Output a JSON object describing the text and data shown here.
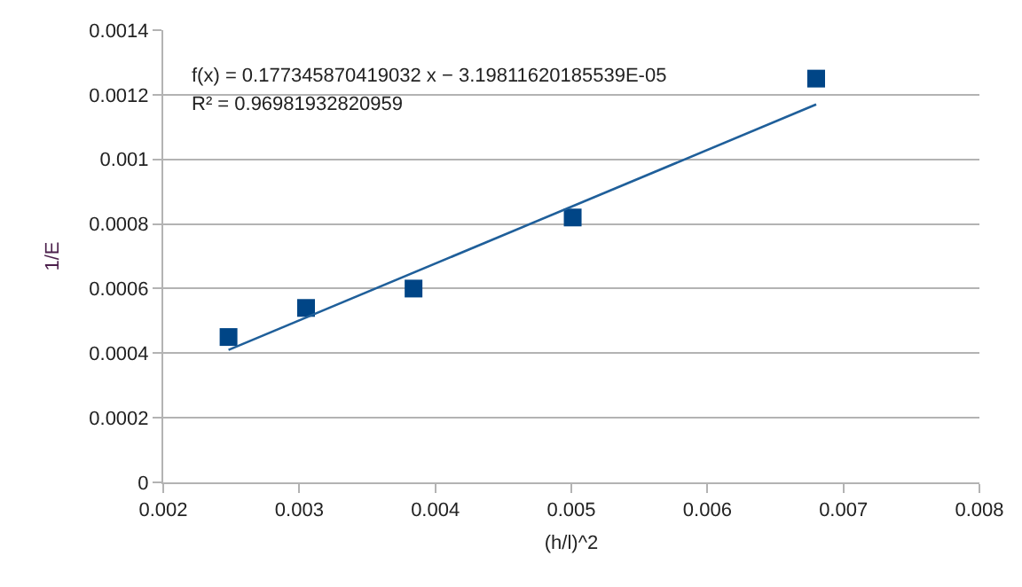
{
  "chart_data": {
    "type": "scatter",
    "xlabel": "(h/l)^2",
    "ylabel": "1/E",
    "series": [
      {
        "color": "#004586",
        "marker": "square",
        "x": [
          0.00248,
          0.00305,
          0.00384,
          0.00501,
          0.0068
        ],
        "values": [
          0.00045,
          0.00054,
          0.0006,
          0.00082,
          0.00125
        ]
      },
      {
        "type": "line",
        "color": "#1f5f9a",
        "marker": "none",
        "x": [
          0.00248,
          0.0068
        ],
        "values": [
          0.00041,
          0.00117
        ]
      }
    ],
    "annotations": [
      "f(x) = 0.177345870419032 x − 3.19811620185539E-05",
      "R² = 0.96981932820959"
    ],
    "xlim": [
      0.002,
      0.008
    ],
    "xticks": [
      0.002,
      0.003,
      0.004,
      0.005,
      0.006,
      0.007,
      0.008
    ],
    "ylim": [
      0,
      0.0014
    ],
    "yticks": [
      0,
      0.0002,
      0.0004,
      0.0006,
      0.0008,
      0.001,
      0.0012,
      0.0014
    ],
    "grid": "y"
  }
}
